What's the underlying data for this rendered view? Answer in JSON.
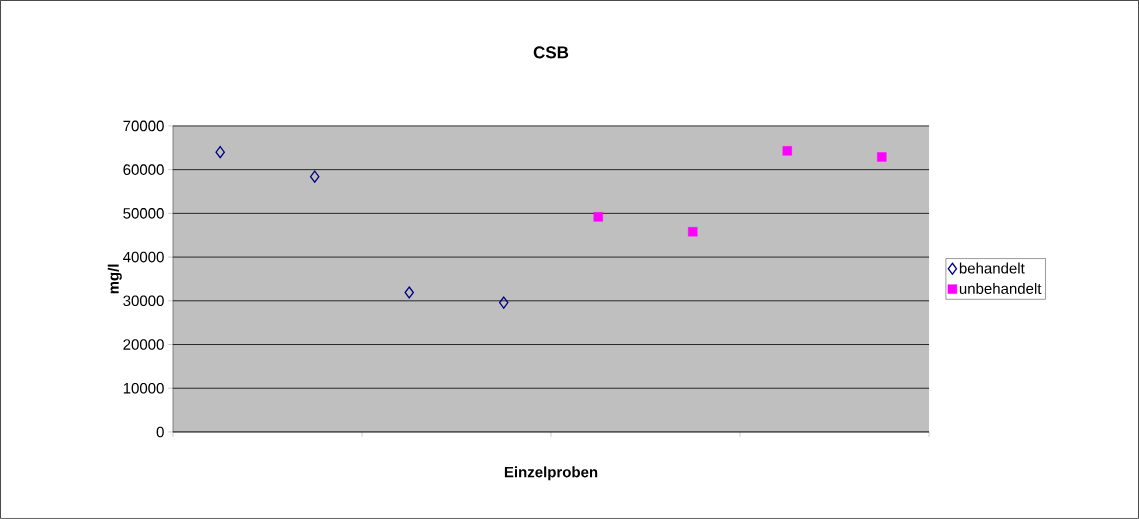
{
  "chart_data": {
    "type": "scatter",
    "title": "CSB",
    "xlabel": "Einzelproben",
    "ylabel": "mg/l",
    "categories": [
      null,
      null,
      null,
      null,
      null,
      null,
      null,
      null
    ],
    "series": [
      {
        "name": "behandelt",
        "color": "#000080",
        "marker": "diamond",
        "values": [
          64000,
          58400,
          31900,
          29600,
          null,
          null,
          null,
          null
        ]
      },
      {
        "name": "unbehandelt",
        "color": "#ff00ff",
        "marker": "square",
        "values": [
          null,
          null,
          null,
          null,
          49200,
          45800,
          64300,
          62900
        ]
      }
    ],
    "ylim": [
      0,
      70000
    ],
    "yticks": [
      0,
      10000,
      20000,
      30000,
      40000,
      50000,
      60000,
      70000
    ],
    "grid": "y",
    "legend": "right"
  }
}
